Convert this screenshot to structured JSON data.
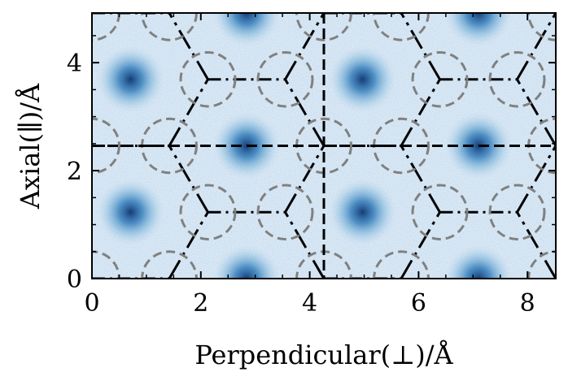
{
  "chart_data": {
    "type": "heatmap",
    "title": "",
    "xlabel": "Perpendicular(⊥)/Å",
    "ylabel": "Axial(∥)/Å",
    "xlim": [
      0,
      8.52
    ],
    "ylim": [
      0,
      4.92
    ],
    "x_ticks": [
      0,
      2,
      4,
      6,
      8
    ],
    "y_ticks": [
      0,
      2,
      4
    ],
    "x_tick_labels": [
      "0",
      "2",
      "4",
      "6",
      "8"
    ],
    "y_tick_labels": [
      "0",
      "2",
      "4"
    ],
    "colormap": "Blues",
    "density_peaks": [
      {
        "x": 0.71,
        "y": 1.23
      },
      {
        "x": 0.71,
        "y": 3.69
      },
      {
        "x": 2.84,
        "y": 0.0
      },
      {
        "x": 2.84,
        "y": 2.46
      },
      {
        "x": 2.84,
        "y": 4.92
      },
      {
        "x": 4.97,
        "y": 1.23
      },
      {
        "x": 4.97,
        "y": 3.69
      },
      {
        "x": 7.1,
        "y": 0.0
      },
      {
        "x": 7.1,
        "y": 2.46
      },
      {
        "x": 7.1,
        "y": 4.92
      }
    ],
    "lattice_sites": [
      {
        "x": 0.0,
        "y": 0.0
      },
      {
        "x": 1.42,
        "y": 0.0
      },
      {
        "x": 4.26,
        "y": 0.0
      },
      {
        "x": 5.68,
        "y": 0.0
      },
      {
        "x": 8.52,
        "y": 0.0
      },
      {
        "x": 2.13,
        "y": 1.23
      },
      {
        "x": 3.55,
        "y": 1.23
      },
      {
        "x": 6.39,
        "y": 1.23
      },
      {
        "x": 7.81,
        "y": 1.23
      },
      {
        "x": 0.0,
        "y": 2.46
      },
      {
        "x": 1.42,
        "y": 2.46
      },
      {
        "x": 4.26,
        "y": 2.46
      },
      {
        "x": 5.68,
        "y": 2.46
      },
      {
        "x": 8.52,
        "y": 2.46
      },
      {
        "x": 2.13,
        "y": 3.69
      },
      {
        "x": 3.55,
        "y": 3.69
      },
      {
        "x": 6.39,
        "y": 3.69
      },
      {
        "x": 7.81,
        "y": 3.69
      },
      {
        "x": 0.0,
        "y": 4.92
      },
      {
        "x": 1.42,
        "y": 4.92
      },
      {
        "x": 4.26,
        "y": 4.92
      },
      {
        "x": 5.68,
        "y": 4.92
      },
      {
        "x": 8.52,
        "y": 4.92
      }
    ],
    "site_circle_radius": 0.5,
    "reference_lines": {
      "vertical_x": 4.26,
      "horizontal_y": 2.46
    }
  },
  "colors": {
    "lattice_line": "#000000",
    "site_circle": "#808080",
    "peak": "#08306b",
    "background": "#deebf7"
  }
}
